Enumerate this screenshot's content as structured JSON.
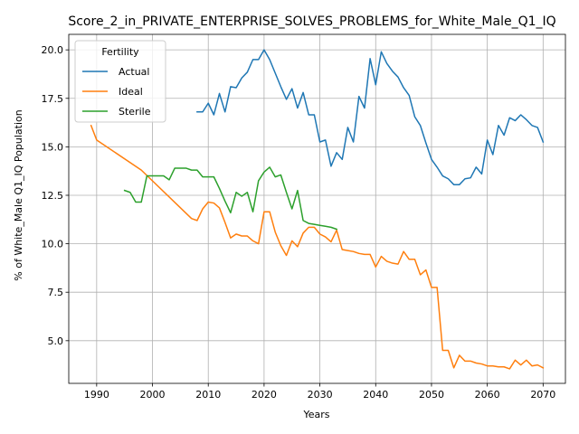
{
  "chart_data": {
    "type": "line",
    "title": "Score_2_in_PRIVATE_ENTERPRISE_SOLVES_PROBLEMS_for_White_Male_Q1_IQ",
    "xlabel": "Years",
    "ylabel": "% of White_Male Q1_IQ Population",
    "xlim": [
      1985,
      2074
    ],
    "ylim": [
      2.8,
      20.8
    ],
    "x_ticks": [
      1990,
      2000,
      2010,
      2020,
      2030,
      2040,
      2050,
      2060,
      2070
    ],
    "y_ticks": [
      5.0,
      7.5,
      10.0,
      12.5,
      15.0,
      17.5,
      20.0
    ],
    "y_tick_labels": [
      "5.0",
      "7.5",
      "10.0",
      "12.5",
      "15.0",
      "17.5",
      "20.0"
    ],
    "grid": true,
    "legend": {
      "title": "Fertility",
      "position": "top-left"
    },
    "series": [
      {
        "name": "Actual",
        "color": "#1f77b4",
        "points": [
          [
            2008,
            16.8
          ],
          [
            2009,
            16.8
          ],
          [
            2010,
            17.25
          ],
          [
            2011,
            16.65
          ],
          [
            2012,
            17.75
          ],
          [
            2013,
            16.8
          ],
          [
            2014,
            18.1
          ],
          [
            2015,
            18.05
          ],
          [
            2016,
            18.55
          ],
          [
            2017,
            18.85
          ],
          [
            2018,
            19.5
          ],
          [
            2019,
            19.5
          ],
          [
            2020,
            20.0
          ],
          [
            2021,
            19.5
          ],
          [
            2022,
            18.8
          ],
          [
            2023,
            18.1
          ],
          [
            2024,
            17.45
          ],
          [
            2025,
            18.0
          ],
          [
            2026,
            17.0
          ],
          [
            2027,
            17.8
          ],
          [
            2028,
            16.65
          ],
          [
            2029,
            16.65
          ],
          [
            2030,
            15.25
          ],
          [
            2031,
            15.35
          ],
          [
            2032,
            14.0
          ],
          [
            2033,
            14.7
          ],
          [
            2034,
            14.35
          ],
          [
            2035,
            16.0
          ],
          [
            2036,
            15.25
          ],
          [
            2037,
            17.6
          ],
          [
            2038,
            17.0
          ],
          [
            2039,
            19.55
          ],
          [
            2040,
            18.2
          ],
          [
            2041,
            19.9
          ],
          [
            2042,
            19.3
          ],
          [
            2043,
            18.9
          ],
          [
            2044,
            18.6
          ],
          [
            2045,
            18.05
          ],
          [
            2046,
            17.65
          ],
          [
            2047,
            16.55
          ],
          [
            2048,
            16.1
          ],
          [
            2049,
            15.2
          ],
          [
            2050,
            14.35
          ],
          [
            2051,
            13.95
          ],
          [
            2052,
            13.5
          ],
          [
            2053,
            13.35
          ],
          [
            2054,
            13.05
          ],
          [
            2055,
            13.05
          ],
          [
            2056,
            13.35
          ],
          [
            2057,
            13.4
          ],
          [
            2058,
            13.95
          ],
          [
            2059,
            13.6
          ],
          [
            2060,
            15.35
          ],
          [
            2061,
            14.6
          ],
          [
            2062,
            16.1
          ],
          [
            2063,
            15.6
          ],
          [
            2064,
            16.5
          ],
          [
            2065,
            16.35
          ],
          [
            2066,
            16.65
          ],
          [
            2067,
            16.4
          ],
          [
            2068,
            16.1
          ],
          [
            2069,
            16.0
          ],
          [
            2070,
            15.25
          ]
        ]
      },
      {
        "name": "Ideal",
        "color": "#ff7f0e",
        "points": [
          [
            1989,
            16.1
          ],
          [
            1990,
            15.35
          ],
          [
            1998,
            13.8
          ],
          [
            2007,
            11.3
          ],
          [
            2008,
            11.2
          ],
          [
            2009,
            11.8
          ],
          [
            2010,
            12.15
          ],
          [
            2011,
            12.1
          ],
          [
            2012,
            11.85
          ],
          [
            2013,
            11.1
          ],
          [
            2014,
            10.3
          ],
          [
            2015,
            10.5
          ],
          [
            2016,
            10.4
          ],
          [
            2017,
            10.4
          ],
          [
            2018,
            10.15
          ],
          [
            2019,
            10.0
          ],
          [
            2020,
            11.65
          ],
          [
            2021,
            11.65
          ],
          [
            2022,
            10.6
          ],
          [
            2023,
            9.9
          ],
          [
            2024,
            9.4
          ],
          [
            2025,
            10.15
          ],
          [
            2026,
            9.85
          ],
          [
            2027,
            10.55
          ],
          [
            2028,
            10.85
          ],
          [
            2029,
            10.85
          ],
          [
            2030,
            10.5
          ],
          [
            2031,
            10.35
          ],
          [
            2032,
            10.1
          ],
          [
            2033,
            10.7
          ],
          [
            2034,
            9.7
          ],
          [
            2035,
            9.65
          ],
          [
            2036,
            9.6
          ],
          [
            2037,
            9.5
          ],
          [
            2038,
            9.45
          ],
          [
            2039,
            9.45
          ],
          [
            2040,
            8.8
          ],
          [
            2041,
            9.35
          ],
          [
            2042,
            9.1
          ],
          [
            2043,
            9.0
          ],
          [
            2044,
            8.95
          ],
          [
            2045,
            9.6
          ],
          [
            2046,
            9.2
          ],
          [
            2047,
            9.2
          ],
          [
            2048,
            8.4
          ],
          [
            2049,
            8.65
          ],
          [
            2050,
            7.75
          ],
          [
            2051,
            7.75
          ],
          [
            2052,
            4.5
          ],
          [
            2053,
            4.5
          ],
          [
            2054,
            3.6
          ],
          [
            2055,
            4.25
          ],
          [
            2056,
            3.95
          ],
          [
            2057,
            3.95
          ],
          [
            2058,
            3.85
          ],
          [
            2059,
            3.8
          ],
          [
            2060,
            3.7
          ],
          [
            2061,
            3.7
          ],
          [
            2062,
            3.65
          ],
          [
            2063,
            3.65
          ],
          [
            2064,
            3.55
          ],
          [
            2065,
            4.0
          ],
          [
            2066,
            3.75
          ],
          [
            2067,
            4.0
          ],
          [
            2068,
            3.7
          ],
          [
            2069,
            3.75
          ],
          [
            2070,
            3.6
          ]
        ]
      },
      {
        "name": "Sterile",
        "color": "#2ca02c",
        "points": [
          [
            1995,
            12.75
          ],
          [
            1996,
            12.65
          ],
          [
            1997,
            12.15
          ],
          [
            1998,
            12.15
          ],
          [
            1999,
            13.5
          ],
          [
            2000,
            13.5
          ],
          [
            2001,
            13.5
          ],
          [
            2002,
            13.5
          ],
          [
            2003,
            13.3
          ],
          [
            2004,
            13.9
          ],
          [
            2005,
            13.9
          ],
          [
            2006,
            13.9
          ],
          [
            2007,
            13.8
          ],
          [
            2008,
            13.8
          ],
          [
            2009,
            13.45
          ],
          [
            2010,
            13.45
          ],
          [
            2011,
            13.45
          ],
          [
            2012,
            12.85
          ],
          [
            2013,
            12.2
          ],
          [
            2014,
            11.6
          ],
          [
            2015,
            12.65
          ],
          [
            2016,
            12.45
          ],
          [
            2017,
            12.65
          ],
          [
            2018,
            11.65
          ],
          [
            2019,
            13.25
          ],
          [
            2020,
            13.7
          ],
          [
            2021,
            13.95
          ],
          [
            2022,
            13.45
          ],
          [
            2023,
            13.55
          ],
          [
            2024,
            12.65
          ],
          [
            2025,
            11.8
          ],
          [
            2026,
            12.75
          ],
          [
            2027,
            11.2
          ],
          [
            2028,
            11.05
          ],
          [
            2029,
            11.0
          ],
          [
            2030,
            10.95
          ],
          [
            2031,
            10.9
          ],
          [
            2032,
            10.85
          ],
          [
            2033,
            10.75
          ]
        ]
      }
    ]
  }
}
